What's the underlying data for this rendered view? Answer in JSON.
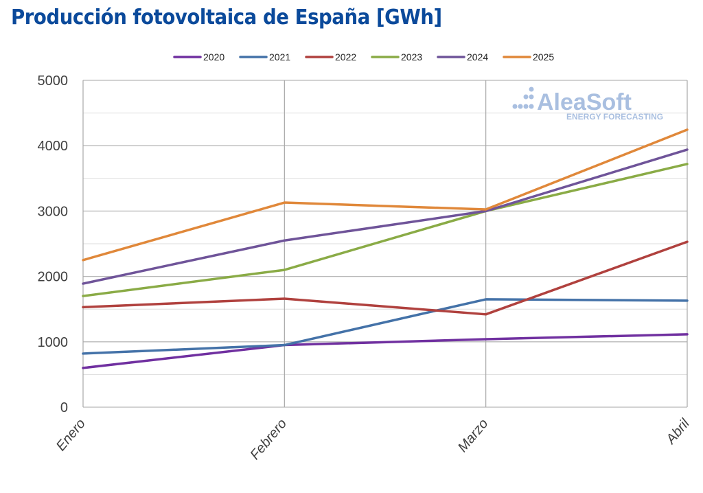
{
  "chart_data": {
    "type": "line",
    "title": "Producción fotovoltaica de España [GWh]",
    "xlabel": "",
    "ylabel": "",
    "categories": [
      "Enero",
      "Febrero",
      "Marzo",
      "Abril"
    ],
    "ylim": [
      0,
      5000
    ],
    "yticks": [
      "0",
      "1000",
      "2000",
      "3000",
      "4000",
      "5000"
    ],
    "grid": true,
    "legend_position": "top",
    "series": [
      {
        "name": "2020",
        "color": "#7030a0",
        "values": [
          600,
          950,
          1040,
          1115
        ]
      },
      {
        "name": "2021",
        "color": "#4472a8",
        "values": [
          820,
          950,
          1650,
          1630
        ]
      },
      {
        "name": "2022",
        "color": "#b0413e",
        "values": [
          1530,
          1660,
          1420,
          2530
        ]
      },
      {
        "name": "2023",
        "color": "#8aab46",
        "values": [
          1700,
          2100,
          3000,
          3720
        ]
      },
      {
        "name": "2024",
        "color": "#6f5499",
        "values": [
          1890,
          2550,
          3000,
          3940
        ]
      },
      {
        "name": "2025",
        "color": "#e0883a",
        "values": [
          2250,
          3130,
          3025,
          4245
        ]
      }
    ]
  },
  "watermark": {
    "brand": "AleaSoft",
    "tagline": "ENERGY FORECASTING"
  }
}
